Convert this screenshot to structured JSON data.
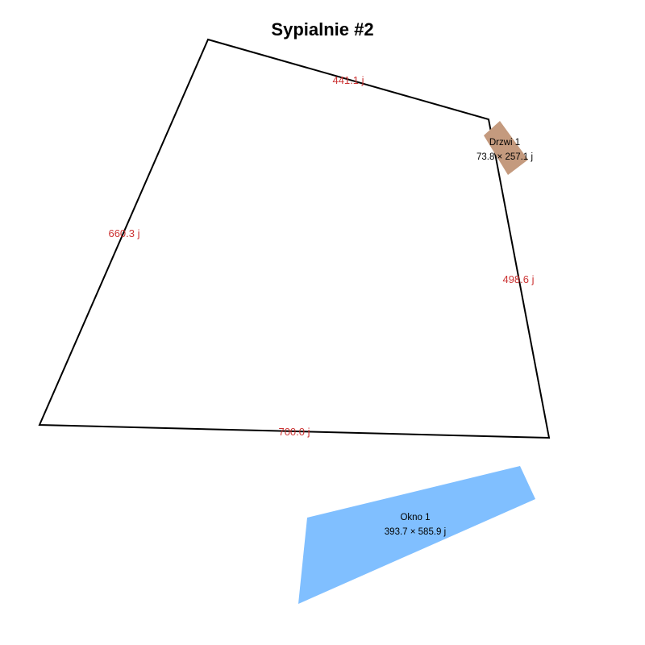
{
  "title": "Sypialnie #2",
  "colors": {
    "wall": "#000000",
    "wall_label": "#cc3333",
    "door": "#c49a7e",
    "window": "#80bfff"
  },
  "walls": [
    {
      "label": "441.1 j"
    },
    {
      "label": "498.6 j"
    },
    {
      "label": "700.0 j"
    },
    {
      "label": "660.3 j"
    }
  ],
  "objects": [
    {
      "type": "door",
      "name": "Drzwi 1",
      "size": "73.8 × 257.1 j"
    },
    {
      "type": "window",
      "name": "Okno 1",
      "size": "393.7 × 585.9 j"
    }
  ]
}
